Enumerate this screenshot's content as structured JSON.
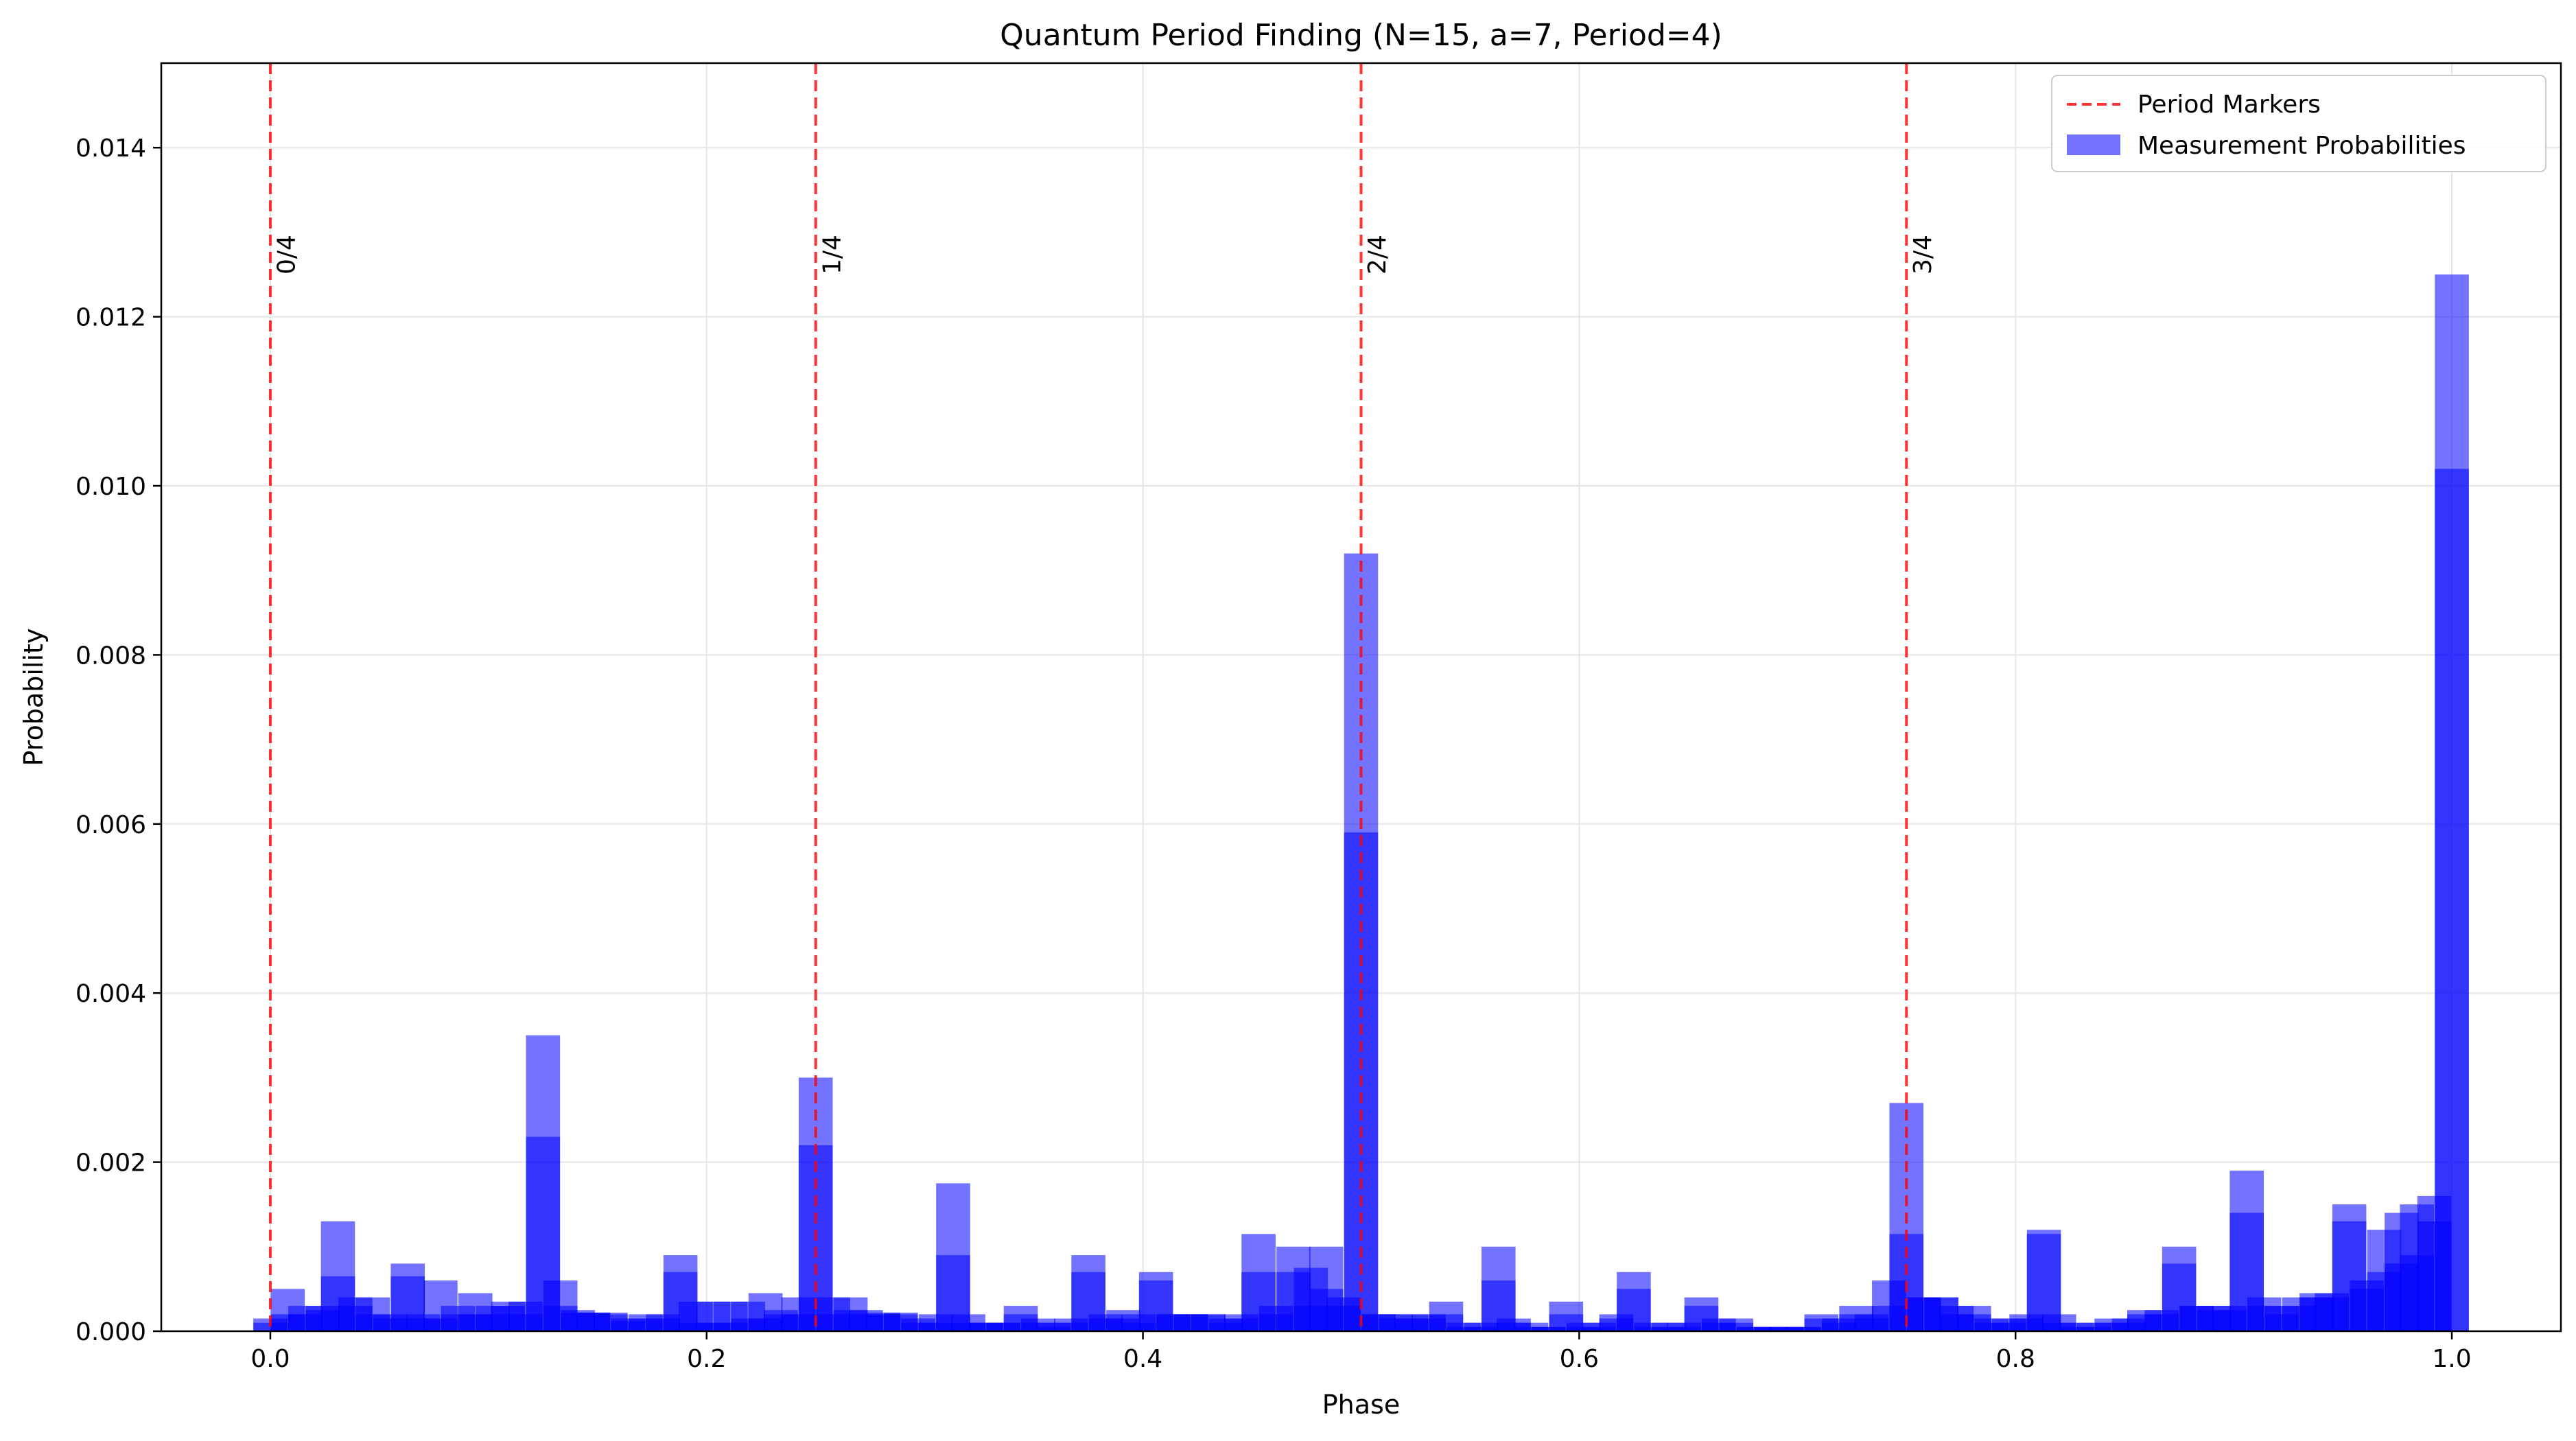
{
  "chart_data": {
    "type": "bar",
    "title": "Quantum Period Finding (N=15, a=7, Period=4)",
    "xlabel": "Phase",
    "ylabel": "Probability",
    "xlim": [
      -0.05,
      1.05
    ],
    "ylim": [
      0,
      0.015
    ],
    "grid": true,
    "legend_position": "top-right",
    "x_ticks": [
      0.0,
      0.2,
      0.4,
      0.6,
      0.8,
      1.0
    ],
    "x_tick_labels": [
      "0.0",
      "0.2",
      "0.4",
      "0.6",
      "0.8",
      "1.0"
    ],
    "y_ticks": [
      0.0,
      0.002,
      0.004,
      0.006,
      0.008,
      0.01,
      0.012,
      0.014
    ],
    "y_tick_labels": [
      "0.000",
      "0.002",
      "0.004",
      "0.006",
      "0.008",
      "0.010",
      "0.012",
      "0.014"
    ],
    "bar_width": 0.0156,
    "bar_color": "#0000ff",
    "bar_alpha": 0.55,
    "marker_color": "#ff0000",
    "period_markers": [
      {
        "x": 0.0,
        "label": "0/4"
      },
      {
        "x": 0.25,
        "label": "1/4"
      },
      {
        "x": 0.5,
        "label": "2/4"
      },
      {
        "x": 0.75,
        "label": "3/4"
      }
    ],
    "legend": [
      {
        "label": "Period Markers",
        "kind": "dashed-line",
        "color": "#ff0000"
      },
      {
        "label": "Measurement Probabilities",
        "kind": "patch",
        "color": "#0000ff"
      }
    ],
    "series": [
      {
        "name": "Measurement Probabilities",
        "x": [
          0.0,
          0.008,
          0.016,
          0.024,
          0.031,
          0.039,
          0.047,
          0.055,
          0.063,
          0.07,
          0.078,
          0.086,
          0.094,
          0.102,
          0.109,
          0.117,
          0.125,
          0.133,
          0.141,
          0.148,
          0.156,
          0.164,
          0.172,
          0.18,
          0.188,
          0.195,
          0.203,
          0.211,
          0.219,
          0.227,
          0.234,
          0.242,
          0.25,
          0.258,
          0.266,
          0.273,
          0.281,
          0.289,
          0.297,
          0.305,
          0.313,
          0.32,
          0.328,
          0.336,
          0.344,
          0.352,
          0.359,
          0.367,
          0.375,
          0.383,
          0.391,
          0.398,
          0.406,
          0.414,
          0.422,
          0.43,
          0.438,
          0.445,
          0.453,
          0.461,
          0.469,
          0.477,
          0.484,
          0.492,
          0.5,
          0.508,
          0.516,
          0.523,
          0.531,
          0.539,
          0.547,
          0.555,
          0.563,
          0.57,
          0.578,
          0.586,
          0.594,
          0.602,
          0.609,
          0.617,
          0.625,
          0.633,
          0.641,
          0.648,
          0.656,
          0.664,
          0.672,
          0.68,
          0.688,
          0.695,
          0.703,
          0.711,
          0.719,
          0.727,
          0.734,
          0.742,
          0.75,
          0.758,
          0.766,
          0.773,
          0.781,
          0.789,
          0.797,
          0.805,
          0.813,
          0.82,
          0.828,
          0.836,
          0.844,
          0.852,
          0.859,
          0.867,
          0.875,
          0.883,
          0.891,
          0.898,
          0.906,
          0.914,
          0.922,
          0.93,
          0.938,
          0.945,
          0.953,
          0.961,
          0.969,
          0.977,
          0.984,
          0.992,
          1.0
        ],
        "values": [
          0.00015,
          0.0005,
          0.0003,
          0.0003,
          0.0013,
          0.0004,
          0.0004,
          0.0002,
          0.0008,
          0.0002,
          0.0006,
          0.0003,
          0.00045,
          0.0003,
          0.00035,
          0.00035,
          0.0035,
          0.0006,
          0.00025,
          0.00022,
          0.00022,
          0.00015,
          0.0002,
          0.0002,
          0.0009,
          0.00035,
          0.00035,
          0.00035,
          0.00035,
          0.00045,
          0.00025,
          0.0004,
          0.003,
          0.0004,
          0.0004,
          0.00025,
          0.00022,
          0.00022,
          0.00015,
          0.0002,
          0.00175,
          0.0002,
          0.0001,
          0.0001,
          0.0003,
          0.00015,
          0.0001,
          0.00015,
          0.0009,
          0.0002,
          0.00025,
          0.0002,
          0.0007,
          0.0002,
          0.0002,
          0.0002,
          0.00015,
          0.0002,
          0.00115,
          0.0003,
          0.001,
          0.00075,
          0.001,
          0.0004,
          0.0092,
          0.0002,
          0.0002,
          0.0002,
          0.0002,
          0.00035,
          0.0001,
          0.0001,
          0.001,
          0.00015,
          0.0001,
          5e-05,
          0.00035,
          0.0001,
          0.0001,
          0.0002,
          0.0007,
          0.0001,
          0.0001,
          0.0001,
          0.0004,
          0.00015,
          0.00015,
          5e-05,
          5e-05,
          5e-05,
          5e-05,
          0.0002,
          0.00015,
          0.0003,
          0.0002,
          0.0006,
          0.0027,
          0.0004,
          0.0004,
          0.0003,
          0.0003,
          0.00015,
          0.00015,
          0.0002,
          0.0012,
          0.0002,
          0.0001,
          0.0001,
          0.00015,
          0.00015,
          0.00025,
          0.00025,
          0.001,
          0.0003,
          0.0003,
          0.0003,
          0.0019,
          0.0004,
          0.0003,
          0.0004,
          0.00045,
          0.00045,
          0.0015,
          0.0006,
          0.0012,
          0.0014,
          0.0015,
          0.0016,
          0.0125
        ]
      },
      {
        "name": "",
        "x": [
          0.0,
          0.008,
          0.016,
          0.024,
          0.031,
          0.039,
          0.047,
          0.055,
          0.063,
          0.07,
          0.078,
          0.086,
          0.094,
          0.102,
          0.109,
          0.117,
          0.125,
          0.133,
          0.141,
          0.148,
          0.156,
          0.164,
          0.172,
          0.18,
          0.188,
          0.195,
          0.203,
          0.211,
          0.219,
          0.227,
          0.234,
          0.242,
          0.25,
          0.258,
          0.266,
          0.273,
          0.281,
          0.289,
          0.297,
          0.305,
          0.313,
          0.32,
          0.328,
          0.336,
          0.344,
          0.352,
          0.359,
          0.367,
          0.375,
          0.383,
          0.391,
          0.398,
          0.406,
          0.414,
          0.422,
          0.43,
          0.438,
          0.445,
          0.453,
          0.461,
          0.469,
          0.477,
          0.484,
          0.492,
          0.5,
          0.508,
          0.516,
          0.523,
          0.531,
          0.539,
          0.547,
          0.555,
          0.563,
          0.57,
          0.578,
          0.586,
          0.594,
          0.602,
          0.609,
          0.617,
          0.625,
          0.633,
          0.641,
          0.648,
          0.656,
          0.664,
          0.672,
          0.68,
          0.688,
          0.695,
          0.703,
          0.711,
          0.719,
          0.727,
          0.734,
          0.742,
          0.75,
          0.758,
          0.766,
          0.773,
          0.781,
          0.789,
          0.797,
          0.805,
          0.813,
          0.82,
          0.828,
          0.836,
          0.844,
          0.852,
          0.859,
          0.867,
          0.875,
          0.883,
          0.891,
          0.898,
          0.906,
          0.914,
          0.922,
          0.93,
          0.938,
          0.945,
          0.953,
          0.961,
          0.969,
          0.977,
          0.984,
          0.992,
          1.0
        ],
        "values": [
          0.0001,
          0.0002,
          0.0002,
          0.00025,
          0.00065,
          0.0003,
          0.0002,
          0.00015,
          0.00065,
          0.00015,
          0.00015,
          0.0002,
          0.0002,
          0.0002,
          0.0003,
          0.0002,
          0.0023,
          0.0003,
          0.00022,
          0.00022,
          0.0002,
          0.00012,
          0.00015,
          0.00015,
          0.0007,
          0.0001,
          0.0001,
          0.0001,
          0.00015,
          0.00015,
          0.0002,
          0.0002,
          0.0022,
          0.0002,
          0.00025,
          0.0002,
          0.0002,
          0.0002,
          0.0001,
          0.0001,
          0.0009,
          0.0001,
          0.0001,
          0.0001,
          0.0002,
          0.0001,
          5e-05,
          0.0001,
          0.0007,
          0.00015,
          0.00015,
          0.0001,
          0.0006,
          0.0002,
          0.0002,
          0.0002,
          0.0001,
          0.00015,
          0.0007,
          0.0002,
          0.0007,
          0.0003,
          0.0005,
          0.0003,
          0.0059,
          0.0002,
          0.00015,
          0.00015,
          0.00015,
          0.0002,
          5e-05,
          5e-05,
          0.0006,
          0.0001,
          5e-05,
          5e-05,
          0.0002,
          5e-05,
          5e-05,
          0.00015,
          0.0005,
          5e-05,
          5e-05,
          5e-05,
          0.0003,
          0.0001,
          0.0001,
          5e-05,
          5e-05,
          5e-05,
          5e-05,
          0.00015,
          0.0001,
          0.0002,
          0.00015,
          0.0003,
          0.00115,
          0.0004,
          0.0004,
          0.0002,
          0.0002,
          0.0001,
          0.0001,
          0.00015,
          0.00115,
          0.0001,
          5e-05,
          5e-05,
          0.0001,
          0.0001,
          0.0002,
          0.0002,
          0.0008,
          0.0003,
          0.00025,
          0.00025,
          0.0014,
          0.0003,
          0.0002,
          0.0003,
          0.0004,
          0.0004,
          0.0013,
          0.0005,
          0.0007,
          0.0008,
          0.0009,
          0.0013,
          0.0102
        ]
      }
    ]
  }
}
